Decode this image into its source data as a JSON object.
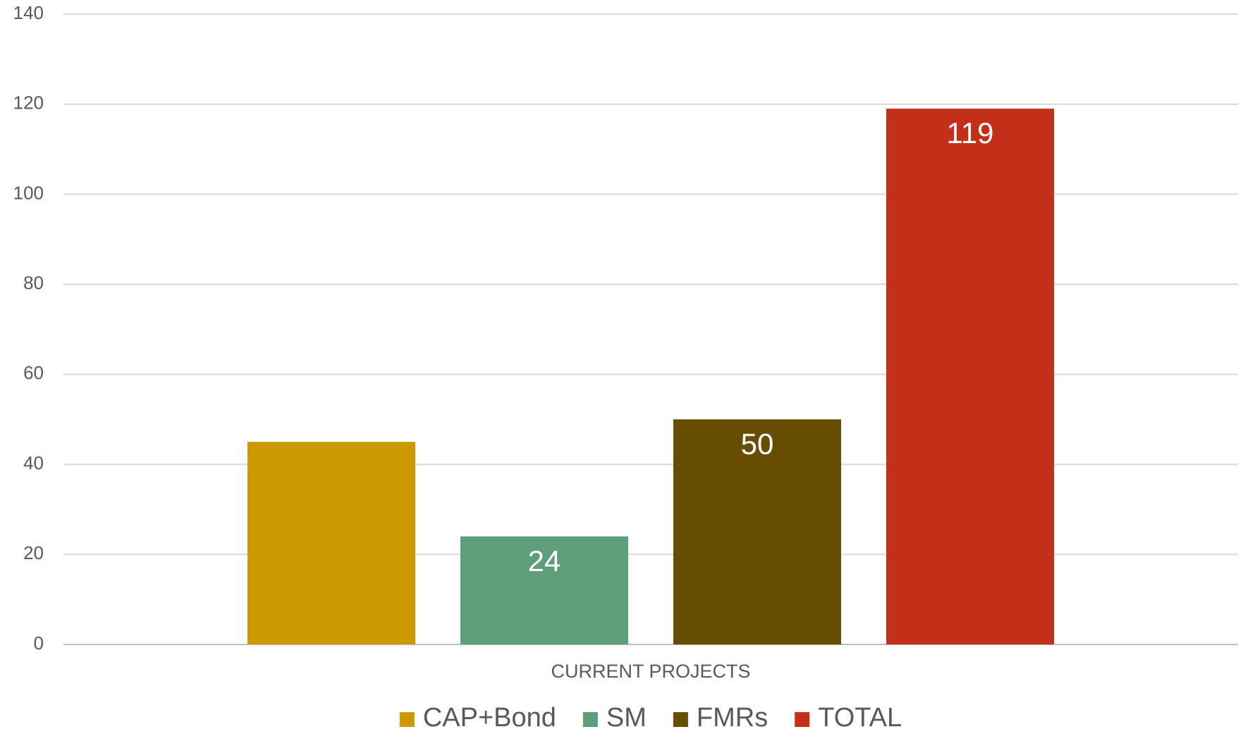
{
  "chart_data": {
    "type": "bar",
    "categories": [
      "CURRENT PROJECTS"
    ],
    "series": [
      {
        "name": "CAP+Bond",
        "color": "#cc9900",
        "values": [
          45
        ]
      },
      {
        "name": "SM",
        "color": "#5f9e7a",
        "values": [
          24
        ]
      },
      {
        "name": "FMRs",
        "color": "#664d00",
        "values": [
          50
        ]
      },
      {
        "name": "TOTAL",
        "color": "#c42f1a",
        "values": [
          119
        ]
      }
    ],
    "data_labels_shown": [
      false,
      true,
      true,
      true
    ],
    "ylim": [
      0,
      140
    ],
    "yticks": [
      0,
      20,
      40,
      60,
      80,
      100,
      120,
      140
    ],
    "grid": true,
    "legend": "bottom"
  }
}
